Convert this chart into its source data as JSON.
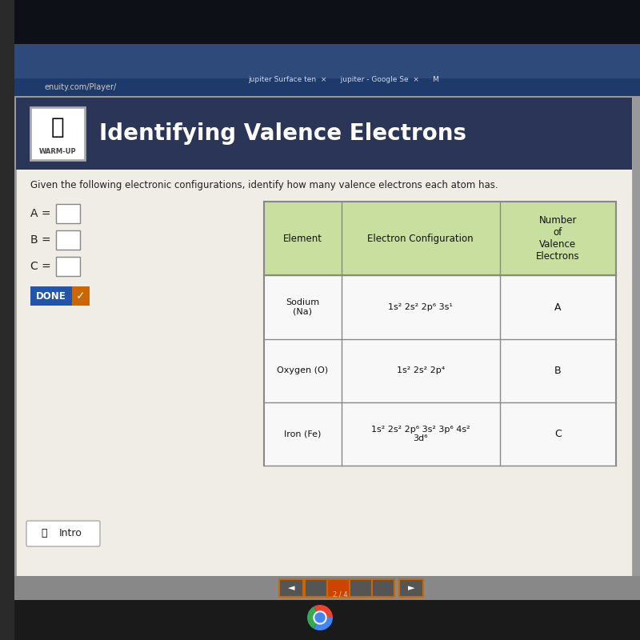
{
  "title": "Identifying Valence Electrons",
  "subtitle": "Given the following electronic configurations, identify how many valence electrons each atom has.",
  "warmup_label": "WARM-UP",
  "header_bg": "#2a3a5c",
  "page_bg": "#b0b0b0",
  "content_bg": "#f5f0eb",
  "table_header_bg": "#c8dfa0",
  "table_body_bg": "#f8f8f8",
  "col_headers": [
    "Element",
    "Electron Configuration",
    "Number\nof\nValence\nElectrons"
  ],
  "rows": [
    [
      "Sodium\n(Na)",
      "1s² 2s² 2p⁶ 3s¹",
      "A"
    ],
    [
      "Oxygen (O)",
      "1s² 2s² 2p⁴",
      "B"
    ],
    [
      "Iron (Fe)",
      "1s² 2s² 2p⁶ 3s² 3p⁶ 4s²\n3d⁶",
      "C"
    ]
  ],
  "input_labels": [
    "A =",
    "B =",
    "C ="
  ],
  "done_label": "DONE",
  "intro_label": "Intro",
  "browser_url": "enuity.com/Player/",
  "browser_tabs": "jupiter Surface ten  ×      jupiter - Google Se  ×      M",
  "screen_bg": "#1a1a2e",
  "laptop_base": "#2a2a2a",
  "taskbar_bg": "#888888",
  "nav_bg": "#777777"
}
